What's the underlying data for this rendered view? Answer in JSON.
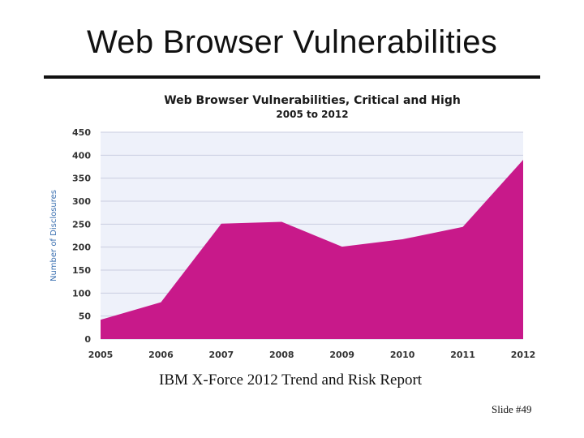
{
  "slide": {
    "title": "Web Browser Vulnerabilities",
    "source": "IBM X-Force 2012 Trend and Risk Report",
    "slide_number": "Slide #49"
  },
  "colors": {
    "area": "#c8198a",
    "plot_background": "#eef1fa",
    "grid": "#c9cde0"
  },
  "chart_data": {
    "type": "area",
    "title": "Web Browser Vulnerabilities, Critical and High",
    "subtitle": "2005 to 2012",
    "xlabel": "",
    "ylabel": "Number of Disclosures",
    "ylim": [
      0,
      450
    ],
    "yticks": [
      "0",
      "50",
      "100",
      "150",
      "200",
      "250",
      "300",
      "350",
      "400",
      "450"
    ],
    "grid": true,
    "x": [
      "2005",
      "2006",
      "2007",
      "2008",
      "2009",
      "2010",
      "2011",
      "2012"
    ],
    "series": [
      {
        "name": "Disclosures",
        "values": [
          42,
          80,
          251,
          255,
          201,
          217,
          244,
          390
        ]
      }
    ]
  }
}
